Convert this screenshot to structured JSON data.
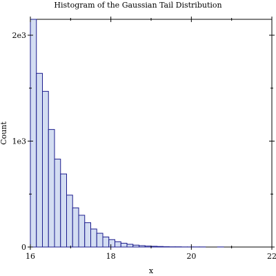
{
  "chart_data": {
    "type": "bar",
    "title": "Histogram of the Gaussian Tail Distribution",
    "xlabel": "x",
    "ylabel": "Count",
    "xlim": [
      16,
      22
    ],
    "ylim": [
      0,
      2150
    ],
    "grid": false,
    "bin_width": 0.15,
    "bin_starts": [
      16.0,
      16.15,
      16.3,
      16.45,
      16.6,
      16.75,
      16.9,
      17.05,
      17.2,
      17.35,
      17.5,
      17.65,
      17.8,
      17.95,
      18.1,
      18.25,
      18.4,
      18.55,
      18.7,
      18.85,
      19.0,
      19.15,
      19.3,
      19.45,
      19.6,
      19.75,
      19.9,
      20.05,
      20.2,
      20.35,
      20.5,
      20.65,
      20.8,
      20.95,
      21.1,
      21.25,
      21.4,
      21.55,
      21.7,
      21.85
    ],
    "values": [
      2150,
      1640,
      1470,
      1110,
      830,
      690,
      490,
      370,
      300,
      230,
      170,
      130,
      95,
      70,
      50,
      36,
      26,
      18,
      13,
      9,
      7,
      5,
      3,
      2,
      2,
      1,
      1,
      1,
      1,
      0,
      0,
      1,
      0,
      0,
      0,
      0,
      0,
      0,
      0,
      0
    ],
    "x_ticks": [
      {
        "value": 16,
        "label": "16"
      },
      {
        "value": 18,
        "label": "18"
      },
      {
        "value": 20,
        "label": "20"
      },
      {
        "value": 22,
        "label": "22"
      }
    ],
    "x_minor_ticks": [
      17,
      19,
      21
    ],
    "y_ticks": [
      {
        "value": 0,
        "label": "0"
      },
      {
        "value": 1000,
        "label": "1e3"
      },
      {
        "value": 2000,
        "label": "2e3"
      }
    ],
    "y_minor_ticks": [
      500,
      1500
    ],
    "colors": {
      "bar_fill": "#d3ddf2",
      "bar_stroke": "#1a1a8c",
      "axis": "#000000"
    }
  }
}
